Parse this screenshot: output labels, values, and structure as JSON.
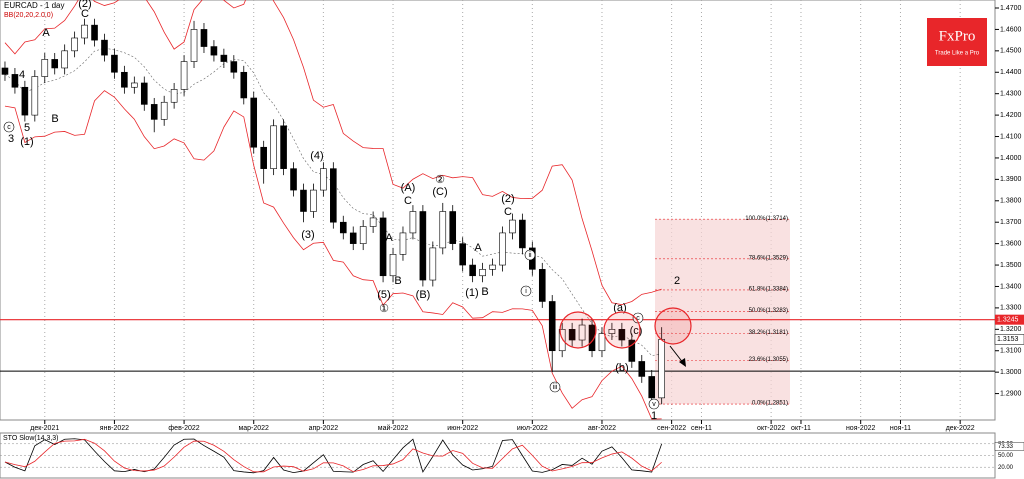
{
  "chart_data": {
    "type": "candlestick",
    "title": "EURCAD - 1 day",
    "indicator_label": "BB(20,20,2.0,0)",
    "logo": {
      "brand": "FxPro",
      "tagline": "Trade Like a Pro"
    },
    "up_color": "#ffffff",
    "down_color": "#000000",
    "band_color": "#e8262a",
    "grid": true,
    "categories": [
      null,
      null,
      null,
      null,
      null,
      null,
      null,
      null,
      null,
      null,
      null,
      null,
      null,
      null,
      null,
      null,
      null,
      null,
      null,
      null,
      null,
      null,
      null,
      null,
      null,
      null,
      null,
      null,
      null,
      null,
      null,
      null,
      null,
      null,
      null,
      null,
      null,
      null,
      null,
      null,
      null,
      null,
      null,
      null,
      null,
      null,
      null,
      null,
      null,
      null,
      null,
      null,
      null,
      null,
      null,
      null,
      null,
      null,
      null,
      null,
      null,
      null,
      null,
      null,
      null,
      null,
      null
    ],
    "open": [
      1.442,
      1.439,
      1.433,
      1.42,
      1.438,
      1.446,
      1.442,
      1.45,
      1.456,
      1.462,
      1.455,
      1.448,
      1.44,
      1.433,
      1.435,
      1.425,
      1.418,
      1.426,
      1.432,
      1.445,
      1.46,
      1.452,
      1.448,
      1.445,
      1.44,
      1.428,
      1.405,
      1.395,
      1.415,
      1.395,
      1.385,
      1.375,
      1.385,
      1.395,
      1.37,
      1.365,
      1.36,
      1.368,
      1.372,
      1.345,
      1.355,
      1.365,
      1.375,
      1.343,
      1.358,
      1.375,
      1.36,
      1.35,
      1.345,
      1.348,
      1.35,
      1.365,
      1.371,
      1.358,
      1.348,
      1.333,
      1.31,
      1.32,
      1.315,
      1.322,
      1.31,
      1.318,
      1.32,
      1.315,
      1.305,
      1.298,
      1.288
    ],
    "high": [
      1.445,
      1.442,
      1.436,
      1.441,
      1.449,
      1.449,
      1.453,
      1.459,
      1.465,
      1.465,
      1.458,
      1.451,
      1.443,
      1.438,
      1.438,
      1.428,
      1.429,
      1.435,
      1.448,
      1.464,
      1.463,
      1.455,
      1.451,
      1.448,
      1.443,
      1.431,
      1.408,
      1.418,
      1.418,
      1.398,
      1.388,
      1.388,
      1.398,
      1.398,
      1.373,
      1.368,
      1.371,
      1.375,
      1.375,
      1.358,
      1.368,
      1.378,
      1.378,
      1.361,
      1.379,
      1.378,
      1.363,
      1.353,
      1.351,
      1.353,
      1.368,
      1.374,
      1.374,
      1.361,
      1.351,
      1.336,
      1.323,
      1.323,
      1.325,
      1.325,
      1.321,
      1.323,
      1.323,
      1.318,
      1.308,
      1.301,
      1.321
    ],
    "low": [
      1.436,
      1.43,
      1.417,
      1.417,
      1.435,
      1.439,
      1.439,
      1.447,
      1.453,
      1.452,
      1.445,
      1.437,
      1.43,
      1.43,
      1.422,
      1.412,
      1.415,
      1.423,
      1.429,
      1.442,
      1.449,
      1.445,
      1.442,
      1.437,
      1.425,
      1.402,
      1.388,
      1.392,
      1.392,
      1.382,
      1.37,
      1.372,
      1.382,
      1.367,
      1.362,
      1.357,
      1.357,
      1.365,
      1.342,
      1.342,
      1.352,
      1.362,
      1.34,
      1.34,
      1.355,
      1.357,
      1.347,
      1.342,
      1.342,
      1.345,
      1.347,
      1.362,
      1.355,
      1.345,
      1.33,
      1.3,
      1.307,
      1.312,
      1.312,
      1.307,
      1.307,
      1.315,
      1.312,
      1.302,
      1.295,
      1.2851,
      1.285
    ],
    "close": [
      1.439,
      1.433,
      1.42,
      1.438,
      1.446,
      1.442,
      1.45,
      1.456,
      1.462,
      1.455,
      1.448,
      1.44,
      1.433,
      1.435,
      1.425,
      1.418,
      1.426,
      1.432,
      1.445,
      1.46,
      1.452,
      1.448,
      1.445,
      1.44,
      1.428,
      1.405,
      1.395,
      1.415,
      1.395,
      1.385,
      1.375,
      1.385,
      1.395,
      1.37,
      1.365,
      1.36,
      1.368,
      1.372,
      1.345,
      1.355,
      1.365,
      1.375,
      1.343,
      1.358,
      1.375,
      1.36,
      1.35,
      1.345,
      1.348,
      1.35,
      1.365,
      1.371,
      1.358,
      1.348,
      1.333,
      1.31,
      1.32,
      1.315,
      1.322,
      1.31,
      1.318,
      1.32,
      1.315,
      1.305,
      1.298,
      1.288,
      1.3153
    ],
    "xlim": [
      -0.5,
      99.5
    ],
    "xticks": [
      {
        "value": 4,
        "label": "дек-2021"
      },
      {
        "value": 11,
        "label": "янв-2022"
      },
      {
        "value": 18,
        "label": "фев-2022"
      },
      {
        "value": 25,
        "label": "мар-2022"
      },
      {
        "value": 32,
        "label": "апр-2022"
      },
      {
        "value": 39,
        "label": "май-2022"
      },
      {
        "value": 46,
        "label": "июн-2022"
      },
      {
        "value": 53,
        "label": "июл-2022"
      },
      {
        "value": 60,
        "label": "авг-2022"
      },
      {
        "value": 67,
        "label": "сен-2022"
      },
      {
        "value": 70,
        "label": "сен-11"
      },
      {
        "value": 77,
        "label": "окт-2022"
      },
      {
        "value": 80,
        "label": "окт-11"
      },
      {
        "value": 86,
        "label": "ноя-2022"
      },
      {
        "value": 90,
        "label": "ноя-11"
      },
      {
        "value": 96,
        "label": "дек-2022"
      }
    ],
    "ylim": [
      1.28,
      1.47
    ],
    "yticks": [
      {
        "value": 1.47,
        "label": "1.4700"
      },
      {
        "value": 1.46,
        "label": "1.4600"
      },
      {
        "value": 1.45,
        "label": "1.4500"
      },
      {
        "value": 1.44,
        "label": "1.4400"
      },
      {
        "value": 1.43,
        "label": "1.4300"
      },
      {
        "value": 1.42,
        "label": "1.4200"
      },
      {
        "value": 1.41,
        "label": "1.4100"
      },
      {
        "value": 1.4,
        "label": "1.4000"
      },
      {
        "value": 1.39,
        "label": "1.3900"
      },
      {
        "value": 1.38,
        "label": "1.3800"
      },
      {
        "value": 1.37,
        "label": "1.3700"
      },
      {
        "value": 1.36,
        "label": "1.3600"
      },
      {
        "value": 1.35,
        "label": "1.3500"
      },
      {
        "value": 1.34,
        "label": "1.3400"
      },
      {
        "value": 1.33,
        "label": "1.3300"
      },
      {
        "value": 1.32,
        "label": "1.3200"
      },
      {
        "value": 1.31,
        "label": "1.3100"
      },
      {
        "value": 1.3,
        "label": "1.3000"
      },
      {
        "value": 1.29,
        "label": "1.2900"
      }
    ],
    "resistance": {
      "value": 1.3245,
      "label": "1.3245"
    },
    "support": 1.3005,
    "last_price": {
      "value": 1.3153,
      "label": "1.3153"
    },
    "fibonacci": [
      {
        "value": 1.3714,
        "label": "100.0%(1.3714)"
      },
      {
        "value": 1.3529,
        "label": "78.6%(1.3529)"
      },
      {
        "value": 1.3384,
        "label": "61.8%(1.3384)"
      },
      {
        "value": 1.3283,
        "label": "50.0%(1.3283)"
      },
      {
        "value": 1.3181,
        "label": "38.2%(1.3181)"
      },
      {
        "value": 1.3055,
        "label": "23.6%(1.3055)"
      },
      {
        "value": 1.2851,
        "label": "0.0%(1.2851)"
      }
    ],
    "annotations": [
      "(2)",
      "C",
      "A",
      "4",
      "5",
      "B",
      "c",
      "3",
      "(1)",
      "(4)",
      "(A)",
      "C",
      "②",
      "(C)",
      "(2)",
      "C",
      "A",
      "B",
      "(5)",
      "①",
      "(3)",
      "(B)",
      "A",
      "(1)",
      "B",
      "ii",
      "i",
      "iii",
      "(a)",
      "c",
      "(c)",
      "(b)",
      "v",
      "1",
      "2"
    ],
    "oscillator": {
      "title": "STO Slow(14,3,3)",
      "ylim": [
        0,
        100
      ],
      "yticks": [
        {
          "value": 80,
          "label": "80.00"
        },
        {
          "value": 50,
          "label": "50.00"
        },
        {
          "value": 20,
          "label": "20.00"
        }
      ],
      "value_labels": [
        {
          "value": 73.33,
          "label": "73.33"
        }
      ]
    }
  }
}
